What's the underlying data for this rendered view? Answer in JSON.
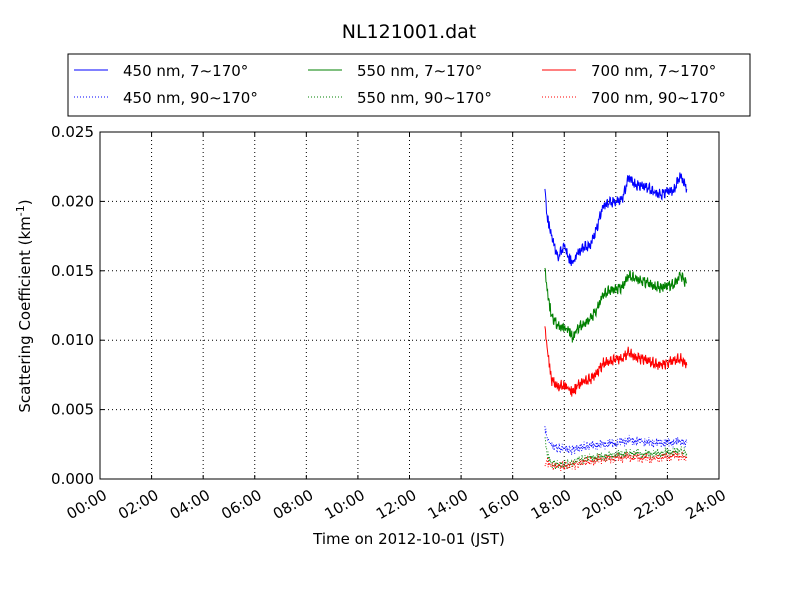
{
  "chart_data": {
    "type": "line",
    "title": "NL121001.dat",
    "xlabel": "Time on 2012-10-01 (JST)",
    "ylabel": "Scattering Coefficient (km",
    "ylabel_exp": "-1",
    "ylabel_end": ")",
    "xlim": [
      "00:00",
      "24:00"
    ],
    "ylim": [
      0.0,
      0.025
    ],
    "x_ticks": [
      "00:00",
      "02:00",
      "04:00",
      "06:00",
      "08:00",
      "10:00",
      "12:00",
      "14:00",
      "16:00",
      "18:00",
      "20:00",
      "22:00",
      "24:00"
    ],
    "y_ticks": [
      "0.000",
      "0.005",
      "0.010",
      "0.015",
      "0.020",
      "0.025"
    ],
    "grid": true,
    "legend_position": "above plot",
    "legend_columns": 3,
    "series": [
      {
        "name": "450 nm, 7∼170°",
        "color": "#0000ff",
        "style": "solid",
        "x": [
          "17:15",
          "17:20",
          "17:30",
          "17:45",
          "18:00",
          "18:10",
          "18:20",
          "18:30",
          "18:45",
          "19:00",
          "19:15",
          "19:30",
          "19:45",
          "20:00",
          "20:15",
          "20:30",
          "20:45",
          "21:00",
          "21:15",
          "21:30",
          "21:45",
          "22:00",
          "22:15",
          "22:30",
          "22:45"
        ],
        "y": [
          0.0209,
          0.019,
          0.0175,
          0.016,
          0.0168,
          0.016,
          0.0155,
          0.0162,
          0.0167,
          0.0168,
          0.018,
          0.0197,
          0.0199,
          0.02,
          0.0201,
          0.0218,
          0.0212,
          0.0211,
          0.021,
          0.0206,
          0.0205,
          0.0207,
          0.0208,
          0.0219,
          0.0209
        ]
      },
      {
        "name": "550 nm, 7∼170°",
        "color": "#008000",
        "style": "solid",
        "x": [
          "17:15",
          "17:20",
          "17:30",
          "17:45",
          "18:00",
          "18:10",
          "18:20",
          "18:30",
          "18:45",
          "19:00",
          "19:15",
          "19:30",
          "19:45",
          "20:00",
          "20:15",
          "20:30",
          "20:45",
          "21:00",
          "21:15",
          "21:30",
          "21:45",
          "22:00",
          "22:15",
          "22:30",
          "22:45"
        ],
        "y": [
          0.0152,
          0.0136,
          0.0118,
          0.011,
          0.0109,
          0.0107,
          0.0102,
          0.0108,
          0.0112,
          0.0115,
          0.0122,
          0.0132,
          0.0136,
          0.0137,
          0.0138,
          0.0147,
          0.0144,
          0.0143,
          0.0141,
          0.0139,
          0.0138,
          0.0139,
          0.014,
          0.0147,
          0.0141
        ]
      },
      {
        "name": "700 nm, 7∼170°",
        "color": "#ff0000",
        "style": "solid",
        "x": [
          "17:15",
          "17:20",
          "17:30",
          "17:45",
          "18:00",
          "18:10",
          "18:20",
          "18:30",
          "18:45",
          "19:00",
          "19:15",
          "19:30",
          "19:45",
          "20:00",
          "20:15",
          "20:30",
          "20:45",
          "21:00",
          "21:15",
          "21:30",
          "21:45",
          "22:00",
          "22:15",
          "22:30",
          "22:45"
        ],
        "y": [
          0.011,
          0.0095,
          0.0072,
          0.0066,
          0.0068,
          0.0065,
          0.0062,
          0.0067,
          0.007,
          0.0072,
          0.0076,
          0.0083,
          0.0085,
          0.0086,
          0.0087,
          0.0091,
          0.0088,
          0.0087,
          0.0085,
          0.0083,
          0.0082,
          0.0084,
          0.0085,
          0.0087,
          0.0082
        ]
      },
      {
        "name": "450 nm, 90∼170°",
        "color": "#0000ff",
        "style": "dotted",
        "x": [
          "17:15",
          "17:20",
          "17:30",
          "17:45",
          "18:00",
          "18:15",
          "18:30",
          "18:45",
          "19:00",
          "19:30",
          "20:00",
          "20:30",
          "21:00",
          "21:30",
          "22:00",
          "22:30",
          "22:45"
        ],
        "y": [
          0.0038,
          0.003,
          0.0024,
          0.0022,
          0.0022,
          0.0021,
          0.0022,
          0.0023,
          0.0024,
          0.0025,
          0.0026,
          0.0028,
          0.0027,
          0.0026,
          0.0026,
          0.0027,
          0.0026
        ]
      },
      {
        "name": "550 nm, 90∼170°",
        "color": "#008000",
        "style": "dotted",
        "x": [
          "17:15",
          "17:20",
          "17:30",
          "17:45",
          "18:00",
          "18:15",
          "18:30",
          "18:45",
          "19:00",
          "19:30",
          "20:00",
          "20:30",
          "21:00",
          "21:30",
          "22:00",
          "22:30",
          "22:45"
        ],
        "y": [
          0.003,
          0.0018,
          0.0012,
          0.001,
          0.001,
          0.0011,
          0.0013,
          0.0014,
          0.0015,
          0.0016,
          0.0017,
          0.0019,
          0.0018,
          0.0018,
          0.0019,
          0.002,
          0.0019
        ]
      },
      {
        "name": "700 nm, 90∼170°",
        "color": "#ff0000",
        "style": "dotted",
        "x": [
          "17:15",
          "17:20",
          "17:30",
          "17:45",
          "18:00",
          "18:15",
          "18:30",
          "18:45",
          "19:00",
          "19:30",
          "20:00",
          "20:30",
          "21:00",
          "21:30",
          "22:00",
          "22:30",
          "22:45"
        ],
        "y": [
          0.001,
          0.0012,
          0.001,
          0.0009,
          0.0009,
          0.001,
          0.0011,
          0.0012,
          0.0013,
          0.0014,
          0.0015,
          0.0016,
          0.0015,
          0.0015,
          0.0016,
          0.0017,
          0.0015
        ]
      }
    ]
  }
}
